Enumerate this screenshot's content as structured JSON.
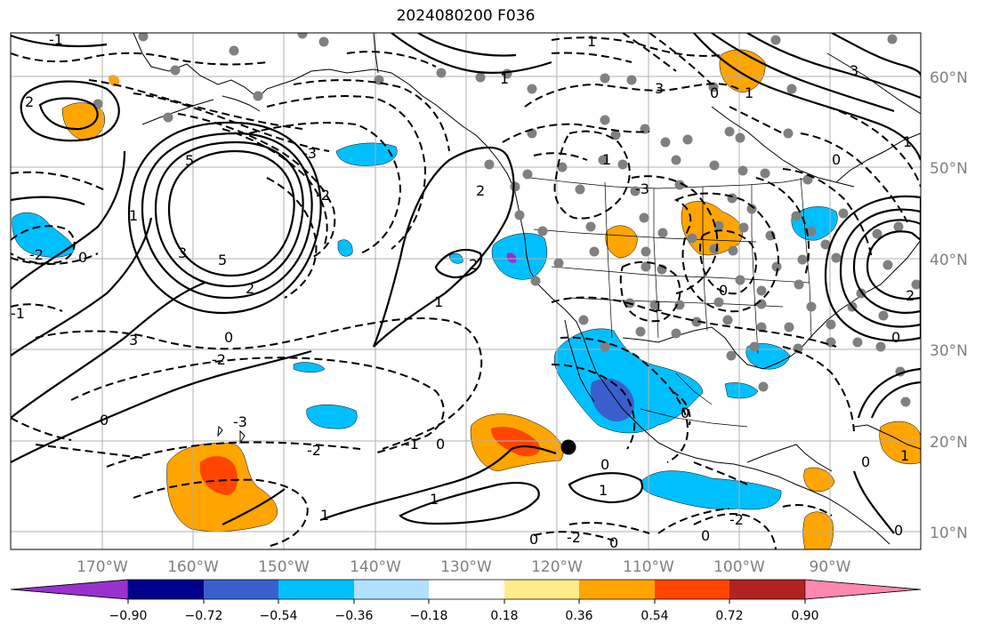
{
  "title": "2024080200 F036",
  "map": {
    "lat_labels": [
      "60°N",
      "50°N",
      "40°N",
      "30°N",
      "20°N",
      "10°N"
    ],
    "lon_labels": [
      "170°W",
      "160°W",
      "150°W",
      "140°W",
      "130°W",
      "120°W",
      "110°W",
      "100°W",
      "90°W"
    ]
  },
  "colorbar": {
    "tick_labels": [
      "−0.90",
      "−0.72",
      "−0.54",
      "−0.36",
      "−0.18",
      "0.18",
      "0.36",
      "0.54",
      "0.72",
      "0.90"
    ],
    "colors": [
      "#9932cc",
      "#00008b",
      "#3a5fcd",
      "#00bfff",
      "#b0e2ff",
      "#ffffff",
      "#ffeb8a",
      "#ffa500",
      "#ff4500",
      "#b22222",
      "#ff88b0"
    ]
  },
  "contour_labels": [
    "-1",
    "-2",
    "-3",
    "0",
    "1",
    "2",
    "3",
    "5",
    "-2",
    "-1",
    "0",
    "1",
    "-2",
    "-3",
    "0",
    "1",
    "2",
    "-1",
    "0",
    "-2",
    "-1",
    "0",
    "1",
    "2",
    "3",
    "-2",
    "-1",
    "0",
    "0",
    "0",
    "-1",
    "-2",
    "0",
    "1",
    "-3",
    "1"
  ],
  "colors": {
    "shade_orange": "#ffa500",
    "shade_redorange": "#ff4500",
    "shade_sky": "#00bfff",
    "shade_blue": "#3a5fcd",
    "shade_purple": "#9932cc",
    "station_dot": "#808080",
    "marker": "#000000"
  }
}
